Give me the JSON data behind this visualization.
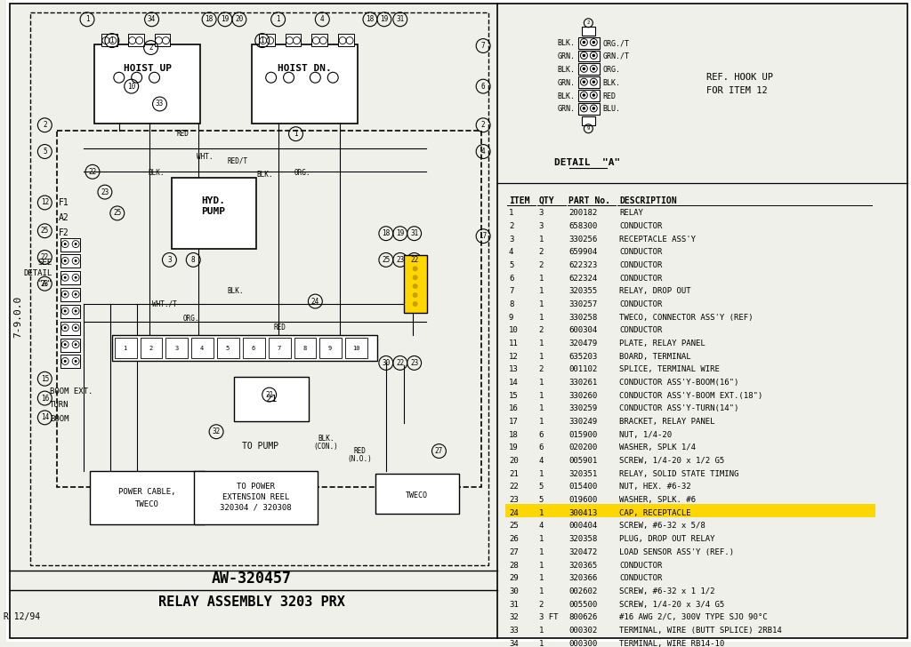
{
  "bg_color": "#f0f0ea",
  "title1": "AW-320457",
  "title2": "RELAY ASSEMBLY 3203 PRX",
  "doc_number": "7-9.0.0",
  "revision": "R 12/94",
  "detail_title": "DETAIL \"A\"",
  "ref_hookup_line1": "REF. HOOK UP",
  "ref_hookup_line2": "FOR ITEM 12",
  "detail_left_labels": [
    "BLK.",
    "GRN.",
    "BLK.",
    "GRN.",
    "BLK.",
    "GRN."
  ],
  "detail_right_labels": [
    "ORG./T",
    "GRN./T",
    "ORG.",
    "BLK.",
    "RED",
    "BLU."
  ],
  "table_headers": [
    "ITEM",
    "QTY",
    "PART No.",
    "DESCRIPTION"
  ],
  "table_data": [
    [
      "1",
      "3",
      "200182",
      "RELAY"
    ],
    [
      "2",
      "3",
      "658300",
      "CONDUCTOR"
    ],
    [
      "3",
      "1",
      "330256",
      "RECEPTACLE ASS'Y"
    ],
    [
      "4",
      "2",
      "659904",
      "CONDUCTOR"
    ],
    [
      "5",
      "2",
      "622323",
      "CONDUCTOR"
    ],
    [
      "6",
      "1",
      "622324",
      "CONDUCTOR"
    ],
    [
      "7",
      "1",
      "320355",
      "RELAY, DROP OUT"
    ],
    [
      "8",
      "1",
      "330257",
      "CONDUCTOR"
    ],
    [
      "9",
      "1",
      "330258",
      "TWECO, CONNECTOR ASS'Y (REF)"
    ],
    [
      "10",
      "2",
      "600304",
      "CONDUCTOR"
    ],
    [
      "11",
      "1",
      "320479",
      "PLATE, RELAY PANEL"
    ],
    [
      "12",
      "1",
      "635203",
      "BOARD, TERMINAL"
    ],
    [
      "13",
      "2",
      "001102",
      "SPLICE, TERMINAL WIRE"
    ],
    [
      "14",
      "1",
      "330261",
      "CONDUCTOR ASS'Y-BOOM(16\")"
    ],
    [
      "15",
      "1",
      "330260",
      "CONDUCTOR ASS'Y-BOOM EXT.(18\")"
    ],
    [
      "16",
      "1",
      "330259",
      "CONDUCTOR ASS'Y-TURN(14\")"
    ],
    [
      "17",
      "1",
      "330249",
      "BRACKET, RELAY PANEL"
    ],
    [
      "18",
      "6",
      "015900",
      "NUT, 1/4-20"
    ],
    [
      "19",
      "6",
      "020200",
      "WASHER, SPLK 1/4"
    ],
    [
      "20",
      "4",
      "005901",
      "SCREW, 1/4-20 x 1/2 G5"
    ],
    [
      "21",
      "1",
      "320351",
      "RELAY, SOLID STATE TIMING"
    ],
    [
      "22",
      "5",
      "015400",
      "NUT, HEX. #6-32"
    ],
    [
      "23",
      "5",
      "019600",
      "WASHER, SPLK. #6"
    ],
    [
      "24",
      "1",
      "300413",
      "CAP, RECEPTACLE"
    ],
    [
      "25",
      "4",
      "000404",
      "SCREW, #6-32 x 5/8"
    ],
    [
      "26",
      "1",
      "320358",
      "PLUG, DROP OUT RELAY"
    ],
    [
      "27",
      "1",
      "320472",
      "LOAD SENSOR ASS'Y (REF.)"
    ],
    [
      "28",
      "1",
      "320365",
      "CONDUCTOR"
    ],
    [
      "29",
      "1",
      "320366",
      "CONDUCTOR"
    ],
    [
      "30",
      "1",
      "002602",
      "SCREW, #6-32 x 1 1/2"
    ],
    [
      "31",
      "2",
      "005500",
      "SCREW, 1/4-20 x 3/4 G5"
    ],
    [
      "32",
      "3 FT",
      "800626",
      "#16 AWG 2/C, 300V TYPE SJO 90°C"
    ],
    [
      "33",
      "1",
      "000302",
      "TERMINAL, WIRE (BUTT SPLICE) 2RB14"
    ],
    [
      "34",
      "1",
      "000300",
      "TERMINAL, WIRE RB14-10"
    ]
  ],
  "highlighted_row": 23,
  "highlight_color": "#FFD700"
}
